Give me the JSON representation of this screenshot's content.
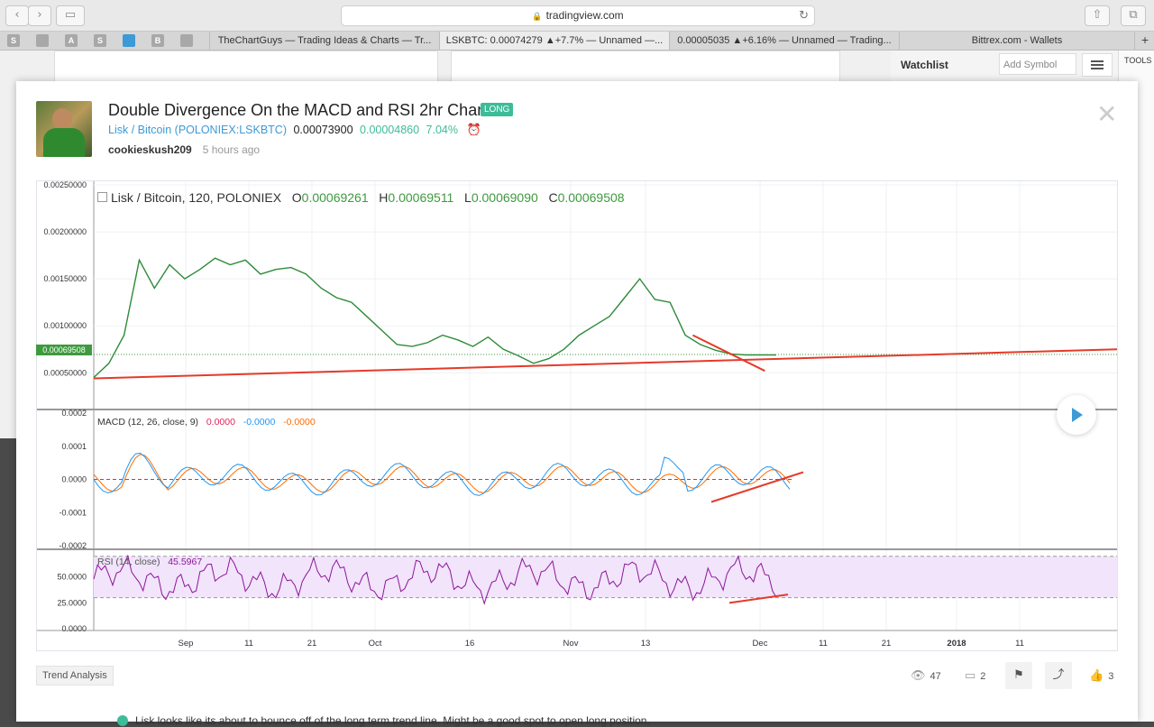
{
  "browser": {
    "url": "tradingview.com",
    "tabs": [
      "TheChartGuys — Trading Ideas & Charts — Tr...",
      "LSKBTC: 0.00074279 ▲+7.7% — Unnamed —...",
      "0.00005035 ▲+6.16% — Unnamed — Trading...",
      "Bittrex.com - Wallets"
    ],
    "favorites": [
      "S",
      "A",
      "S",
      "B"
    ]
  },
  "background": {
    "watchlist_label": "Watchlist",
    "add_symbol_placeholder": "Add Symbol",
    "tools_label": "TOOLS"
  },
  "idea": {
    "title": "Double Divergence On the MACD and RSI 2hr Chart",
    "badge": "LONG",
    "pair": "Lisk / Bitcoin",
    "exchange": "(POLONIEX:LSKBTC)",
    "price": "0.00073900",
    "change": "0.00004860",
    "change_pct": "7.04%",
    "author": "cookieskush209",
    "time": "5 hours ago"
  },
  "chart": {
    "legend": {
      "title": "Lisk / Bitcoin, 120, POLONIEX",
      "o_label": "O",
      "o": "0.00069261",
      "h_label": "H",
      "h": "0.00069511",
      "l_label": "L",
      "l": "0.00069090",
      "c_label": "C",
      "c": "0.00069508"
    },
    "price_flag": "0.00069508",
    "macd_legend": {
      "name": "MACD (12, 26, close, 9)",
      "v1": "0.0000",
      "v2": "-0.0000",
      "v3": "-0.0000"
    },
    "rsi_legend": {
      "name": "RSI (14, close)",
      "v": "45.5967"
    }
  },
  "chart_data": [
    {
      "type": "line",
      "title": "Lisk / Bitcoin, 120, POLONIEX",
      "x_ticks": [
        "Sep",
        "11",
        "21",
        "Oct",
        "16",
        "Nov",
        "13",
        "Dec",
        "11",
        "21",
        "2018",
        "11"
      ],
      "y_ticks": [
        "0.00250000",
        "0.00200000",
        "0.00150000",
        "0.00100000",
        "0.00050000"
      ],
      "ylim": [
        0.0003,
        0.0025
      ],
      "x": [
        0,
        2,
        4,
        6,
        8,
        10,
        12,
        14,
        16,
        18,
        20,
        22,
        24,
        26,
        28,
        30,
        32,
        34,
        36,
        38,
        40,
        42,
        44,
        46,
        48,
        50,
        52,
        54,
        56,
        58,
        60,
        62,
        64,
        66,
        68,
        70,
        72,
        74,
        76,
        78,
        80,
        82,
        84,
        86,
        88,
        90
      ],
      "y": [
        0.00045,
        0.0006,
        0.0009,
        0.0017,
        0.0014,
        0.00165,
        0.0015,
        0.0016,
        0.00172,
        0.00165,
        0.0017,
        0.00155,
        0.0016,
        0.00162,
        0.00155,
        0.0014,
        0.0013,
        0.00125,
        0.0011,
        0.00095,
        0.0008,
        0.00078,
        0.00082,
        0.0009,
        0.00085,
        0.00078,
        0.00088,
        0.00075,
        0.00068,
        0.0006,
        0.00065,
        0.00075,
        0.0009,
        0.001,
        0.0011,
        0.0013,
        0.0015,
        0.00128,
        0.00125,
        0.0009,
        0.0008,
        0.00074,
        0.0007,
        0.00069,
        0.00069,
        0.00069
      ],
      "annotations": [
        "support trendline",
        "falling price trendline"
      ]
    },
    {
      "type": "line",
      "title": "MACD (12, 26, close, 9)",
      "y_ticks": [
        "0.0002",
        "0.0001",
        "0.0000",
        "-0.0001",
        "-0.0002"
      ],
      "ylim": [
        -0.0002,
        0.0002
      ]
    },
    {
      "type": "line",
      "title": "RSI (14, close)",
      "y_ticks": [
        "50.0000",
        "25.0000",
        "0.0000"
      ],
      "ylim": [
        0,
        75
      ]
    }
  ],
  "footer": {
    "tag": "Trend Analysis",
    "views": "47",
    "comments": "2",
    "likes": "3",
    "description": "Lisk looks like its about to bounce off of the long term trend line. Might be a good spot to open long position."
  }
}
